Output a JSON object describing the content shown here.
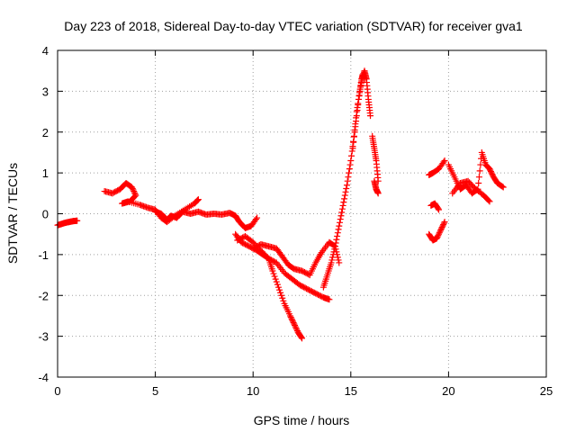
{
  "chart_data": {
    "type": "scatter",
    "title": "Day 223 of 2018, Sidereal Day-to-day VTEC variation (SDTVAR) for receiver gva1",
    "xlabel": "GPS time / hours",
    "ylabel": "SDTVAR / TECUs",
    "xlim": [
      0,
      25
    ],
    "ylim": [
      -4,
      4
    ],
    "xticks": [
      0,
      5,
      10,
      15,
      20,
      25
    ],
    "yticks": [
      -4,
      -3,
      -2,
      -1,
      0,
      1,
      2,
      3,
      4
    ],
    "grid": true,
    "marker": "+",
    "color": "#ff0000",
    "series": [
      {
        "name": "seg1",
        "x": [
          0.0,
          0.2,
          0.4,
          0.6,
          0.8,
          1.0
        ],
        "y": [
          -0.28,
          -0.25,
          -0.22,
          -0.2,
          -0.18,
          -0.17
        ]
      },
      {
        "name": "seg2",
        "x": [
          2.4,
          2.8,
          3.2,
          3.5,
          3.8,
          4.0,
          3.7,
          3.3,
          3.6,
          4.2,
          4.6,
          5.0,
          5.3,
          5.6,
          6.0,
          6.5,
          7.0,
          7.2
        ],
        "y": [
          0.55,
          0.5,
          0.6,
          0.75,
          0.65,
          0.45,
          0.3,
          0.25,
          0.3,
          0.22,
          0.15,
          0.1,
          -0.1,
          -0.2,
          -0.05,
          0.1,
          0.25,
          0.35
        ]
      },
      {
        "name": "seg3",
        "x": [
          5.0,
          5.3,
          5.6,
          5.8,
          6.1,
          6.4,
          6.8,
          7.2,
          7.6,
          8.0,
          8.4,
          8.8,
          9.1,
          9.3,
          9.6,
          9.9,
          10.2
        ],
        "y": [
          0.05,
          0.0,
          -0.15,
          -0.05,
          -0.1,
          0.05,
          0.0,
          0.05,
          -0.02,
          0.0,
          -0.02,
          0.02,
          -0.05,
          -0.2,
          -0.35,
          -0.3,
          -0.1
        ]
      },
      {
        "name": "seg4",
        "x": [
          9.1,
          9.4,
          9.8,
          10.2,
          10.5,
          10.8,
          11.0,
          11.3,
          11.6,
          11.9,
          12.1,
          12.3,
          12.5
        ],
        "y": [
          -0.5,
          -0.7,
          -0.8,
          -0.9,
          -1.0,
          -1.1,
          -1.4,
          -1.8,
          -2.2,
          -2.5,
          -2.7,
          -2.9,
          -3.05
        ]
      },
      {
        "name": "seg5",
        "x": [
          9.2,
          9.6,
          10.0,
          10.4,
          10.8,
          11.2,
          11.6,
          12.0,
          12.4,
          12.8,
          13.2,
          13.6,
          13.9
        ],
        "y": [
          -0.65,
          -0.55,
          -0.7,
          -0.9,
          -1.1,
          -1.2,
          -1.45,
          -1.6,
          -1.75,
          -1.85,
          -1.95,
          -2.05,
          -2.1
        ]
      },
      {
        "name": "seg6",
        "x": [
          10.0,
          10.4,
          10.8,
          11.2,
          11.5,
          11.8,
          12.1,
          12.5,
          12.9,
          13.2,
          13.5,
          13.9,
          14.2,
          14.4
        ],
        "y": [
          -0.85,
          -0.75,
          -0.8,
          -0.85,
          -1.05,
          -1.25,
          -1.35,
          -1.4,
          -1.5,
          -1.2,
          -0.95,
          -0.7,
          -0.8,
          -1.2
        ]
      },
      {
        "name": "seg7",
        "x": [
          13.6,
          13.8,
          14.0,
          14.2,
          14.4,
          14.6,
          14.8,
          15.0,
          15.2,
          15.4,
          15.55,
          15.7,
          15.8,
          15.9,
          16.0
        ],
        "y": [
          -1.8,
          -1.5,
          -1.2,
          -0.8,
          -0.3,
          0.2,
          0.7,
          1.3,
          2.0,
          2.8,
          3.3,
          3.5,
          3.3,
          2.8,
          2.4
        ]
      },
      {
        "name": "seg8",
        "x": [
          15.1,
          15.3,
          15.5,
          15.6,
          15.7
        ],
        "y": [
          1.6,
          2.5,
          3.1,
          3.4,
          3.3
        ]
      },
      {
        "name": "seg9",
        "x": [
          16.1,
          16.2,
          16.3,
          16.4
        ],
        "y": [
          1.9,
          1.6,
          1.3,
          0.8
        ]
      },
      {
        "name": "seg10",
        "x": [
          16.2,
          16.3,
          16.4
        ],
        "y": [
          0.8,
          0.6,
          0.5
        ]
      },
      {
        "name": "seg11",
        "x": [
          19.0,
          19.2,
          19.5,
          19.8
        ],
        "y": [
          0.95,
          1.0,
          1.1,
          1.3
        ]
      },
      {
        "name": "seg12",
        "x": [
          19.1,
          19.3,
          19.5
        ],
        "y": [
          0.2,
          0.25,
          0.1
        ]
      },
      {
        "name": "seg13",
        "x": [
          19.0,
          19.2,
          19.4,
          19.6,
          19.8
        ],
        "y": [
          -0.5,
          -0.65,
          -0.6,
          -0.4,
          -0.2
        ]
      },
      {
        "name": "seg14",
        "x": [
          20.0,
          20.3,
          20.6,
          20.9,
          21.2,
          21.5,
          21.7,
          21.9,
          22.1,
          22.3,
          22.5,
          22.8
        ],
        "y": [
          1.2,
          0.9,
          0.6,
          0.7,
          0.5,
          0.6,
          1.5,
          1.2,
          1.1,
          0.9,
          0.75,
          0.65
        ]
      },
      {
        "name": "seg15",
        "x": [
          20.2,
          20.6,
          21.0,
          21.4,
          21.8,
          22.1
        ],
        "y": [
          0.5,
          0.75,
          0.8,
          0.6,
          0.45,
          0.3
        ]
      }
    ]
  }
}
